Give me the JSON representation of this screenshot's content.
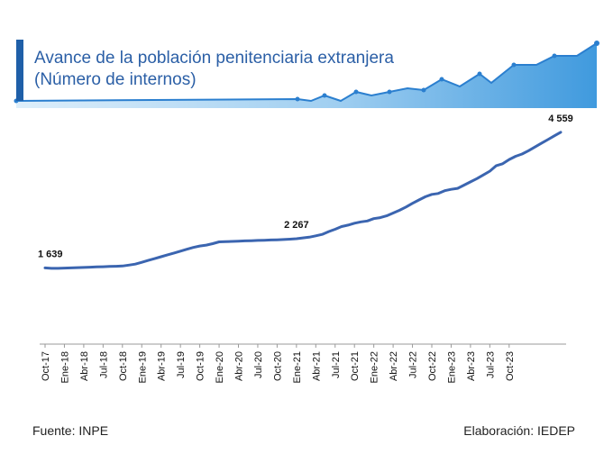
{
  "header": {
    "title_line1": "Avance de la población penitenciaria extranjera",
    "title_line2": "(Número de internos)"
  },
  "footer": {
    "source": "Fuente: INPE",
    "credit": "Elaboración: IEDEP"
  },
  "colors": {
    "accent": "#1f5fa8",
    "line": "#3b65b0",
    "banner_light": "#a9d2f0",
    "banner_dark": "#1e88d8"
  },
  "chart_data": {
    "type": "line",
    "title": "Avance de la población penitenciaria extranjera",
    "subtitle": "(Número de internos)",
    "xlabel": "",
    "ylabel": "",
    "grid": false,
    "legend": "none",
    "ylim": [
      0,
      5000
    ],
    "tick_labels": [
      "Oct-17",
      "Ene-18",
      "Abr-18",
      "Jul-18",
      "Oct-18",
      "Ene-19",
      "Abr-19",
      "Jul-19",
      "Oct-19",
      "Ene-20",
      "Abr-20",
      "Jul-20",
      "Oct-20",
      "Ene-21",
      "Abr-21",
      "Jul-21",
      "Oct-21",
      "Ene-22",
      "Abr-22",
      "Jul-22",
      "Oct-22",
      "Ene-23",
      "Abr-23",
      "Jul-23",
      "Oct-23"
    ],
    "series": [
      {
        "values": [
          1639,
          1630,
          1630,
          1635,
          1640,
          1645,
          1650,
          1655,
          1660,
          1665,
          1670,
          1675,
          1680,
          1700,
          1720,
          1760,
          1800,
          1840,
          1880,
          1920,
          1960,
          2000,
          2040,
          2080,
          2110,
          2130,
          2160,
          2200,
          2205,
          2210,
          2215,
          2220,
          2225,
          2230,
          2235,
          2240,
          2245,
          2250,
          2258,
          2267,
          2285,
          2300,
          2330,
          2360,
          2420,
          2470,
          2530,
          2560,
          2600,
          2630,
          2650,
          2700,
          2720,
          2760,
          2820,
          2880,
          2950,
          3030,
          3100,
          3170,
          3220,
          3240,
          3300,
          3330,
          3350,
          3420,
          3490,
          3560,
          3640,
          3720,
          3840,
          3880,
          3970,
          4040,
          4090,
          4160,
          4240,
          4320,
          4400,
          4480,
          4559
        ],
        "data_labels": [
          {
            "index": 0,
            "label": "1 639"
          },
          {
            "index": 39,
            "label": "2 267"
          },
          {
            "index": 80,
            "label": "4 559"
          }
        ]
      }
    ]
  }
}
